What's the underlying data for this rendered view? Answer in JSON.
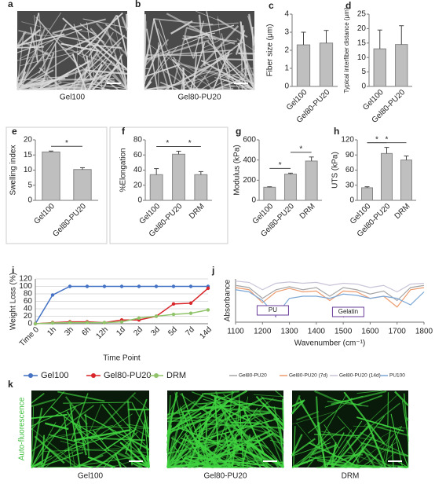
{
  "sem_images": {
    "panels": [
      "a",
      "b"
    ],
    "labels": [
      "Gel100",
      "Gel80-PU20"
    ]
  },
  "fluorescence_images": {
    "panel": "k",
    "side_label": "Auto-fluorescence",
    "labels": [
      "Gel100",
      "Gel80-PU20",
      "DRM"
    ]
  },
  "chart_data": [
    {
      "type": "bar",
      "panel": "c",
      "ylabel": "Fiber size (μm)",
      "categories": [
        "Gel100",
        "Gel80-PU20"
      ],
      "values": [
        2.3,
        2.4
      ],
      "errors": [
        0.7,
        0.7
      ],
      "color": "#bfbfbf",
      "ylim": [
        0,
        4
      ],
      "yticks": [
        0,
        1,
        2,
        3,
        4
      ]
    },
    {
      "type": "bar",
      "panel": "d",
      "ylabel": "Typical interfiber distance (μm)",
      "categories": [
        "Gel100",
        "Gel80-PU20"
      ],
      "values": [
        13,
        14.5
      ],
      "errors": [
        6.5,
        6.5
      ],
      "color": "#bfbfbf",
      "ylim": [
        0,
        25
      ],
      "yticks": [
        0,
        5,
        10,
        15,
        20,
        25
      ]
    },
    {
      "type": "bar",
      "panel": "e",
      "ylabel": "Swelling index",
      "categories": [
        "Gel100",
        "Gel80-PU20"
      ],
      "values": [
        16,
        10.2
      ],
      "errors": [
        0.3,
        0.6
      ],
      "color": "#bfbfbf",
      "ylim": [
        0,
        20
      ],
      "yticks": [
        0,
        5,
        10,
        15,
        20
      ],
      "comparisons": [
        {
          "between": [
            "Gel100",
            "Gel80-PU20"
          ],
          "label": "*"
        }
      ]
    },
    {
      "type": "bar",
      "panel": "f",
      "ylabel": "%Elongation",
      "categories": [
        "Gel100",
        "Gel80-PU20",
        "DRM"
      ],
      "values": [
        34,
        61,
        34
      ],
      "errors": [
        8,
        4,
        4
      ],
      "color": "#bfbfbf",
      "ylim": [
        0,
        80
      ],
      "yticks": [
        0,
        20,
        40,
        60,
        80
      ],
      "comparisons": [
        {
          "between": [
            "Gel100",
            "Gel80-PU20"
          ],
          "label": "*"
        },
        {
          "between": [
            "Gel80-PU20",
            "DRM"
          ],
          "label": "*"
        }
      ]
    },
    {
      "type": "bar",
      "panel": "g",
      "ylabel": "Modulus (kPa)",
      "categories": [
        "Gel100",
        "Gel80-PU20",
        "DRM"
      ],
      "values": [
        130,
        260,
        390
      ],
      "errors": [
        5,
        10,
        40
      ],
      "color": "#bfbfbf",
      "ylim": [
        0,
        600
      ],
      "yticks": [
        0,
        200,
        400,
        600
      ],
      "comparisons": [
        {
          "between": [
            "Gel100",
            "Gel80-PU20"
          ],
          "label": "*"
        },
        {
          "between": [
            "Gel80-PU20",
            "DRM"
          ],
          "label": "*"
        }
      ]
    },
    {
      "type": "bar",
      "panel": "h",
      "ylabel": "UTS (kPa)",
      "categories": [
        "Gel100",
        "Gel80-PU20",
        "DRM"
      ],
      "values": [
        25,
        93,
        80
      ],
      "errors": [
        2,
        12,
        8
      ],
      "color": "#bfbfbf",
      "ylim": [
        0,
        120
      ],
      "yticks": [
        0,
        30,
        60,
        90,
        120
      ],
      "comparisons": [
        {
          "between": [
            "Gel100",
            "Gel80-PU20"
          ],
          "label": "*"
        },
        {
          "between": [
            "Gel100",
            "DRM"
          ],
          "label": "*"
        }
      ]
    },
    {
      "type": "line",
      "panel": "i",
      "ylabel": "Weight Loss (%)",
      "xlabel": "Time Point",
      "categories": [
        "Time 0",
        "1h",
        "3h",
        "6h",
        "12h",
        "1d",
        "2d",
        "3d",
        "5d",
        "7d",
        "14d"
      ],
      "ylim": [
        0,
        120
      ],
      "yticks": [
        0,
        20,
        40,
        60,
        80,
        100,
        120
      ],
      "grid": true,
      "series": [
        {
          "name": "Gel100",
          "color": "#4472c4",
          "values": [
            0,
            77,
            100,
            100,
            100,
            100,
            100,
            100,
            100,
            100,
            100
          ]
        },
        {
          "name": "Gel80-PU20",
          "color": "#d9262b",
          "values": [
            0,
            3,
            5,
            5,
            3,
            10,
            10,
            20,
            53,
            55,
            95
          ]
        },
        {
          "name": "DRM",
          "color": "#8fc46a",
          "values": [
            0,
            2,
            3,
            3,
            3,
            5,
            15,
            20,
            25,
            28,
            37
          ]
        }
      ]
    },
    {
      "type": "spectrum",
      "panel": "j",
      "ylabel": "Absorbance",
      "xlabel": "Wavenumber (cm⁻¹)",
      "x": [
        1100,
        1150,
        1200,
        1250,
        1300,
        1350,
        1400,
        1450,
        1500,
        1550,
        1600,
        1650,
        1700,
        1750,
        1800
      ],
      "xlim": [
        1100,
        1800
      ],
      "xticks": [
        1100,
        1200,
        1300,
        1400,
        1500,
        1600,
        1700,
        1800
      ],
      "ylim": [
        0,
        1
      ],
      "annotations": [
        "PU",
        "Gelatin"
      ],
      "series": [
        {
          "name": "Gel80-PU20",
          "color": "#a6a6a6",
          "values": [
            0.85,
            0.8,
            0.55,
            0.75,
            0.82,
            0.75,
            0.8,
            0.6,
            0.8,
            0.75,
            0.65,
            0.72,
            0.5,
            0.8,
            0.85
          ]
        },
        {
          "name": "Gel80-PU20 (7d)",
          "color": "#ed9b6e",
          "values": [
            0.8,
            0.75,
            0.45,
            0.7,
            0.78,
            0.7,
            0.72,
            0.5,
            0.72,
            0.7,
            0.55,
            0.6,
            0.35,
            0.75,
            0.8
          ]
        },
        {
          "name": "Gel80-PU20 (14d)",
          "color": "#c9c3d8",
          "values": [
            0.95,
            0.92,
            0.75,
            0.9,
            0.93,
            0.9,
            0.92,
            0.85,
            0.9,
            0.88,
            0.8,
            0.85,
            0.7,
            0.88,
            0.9
          ]
        },
        {
          "name": "PU100",
          "color": "#7ba7d6",
          "values": [
            0.75,
            0.7,
            0.5,
            0.15,
            0.55,
            0.6,
            0.6,
            0.55,
            0.65,
            0.62,
            0.55,
            0.6,
            0.55,
            0.4,
            0.7
          ]
        }
      ]
    }
  ]
}
